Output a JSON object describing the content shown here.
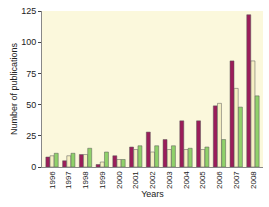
{
  "chart_data": {
    "type": "bar",
    "x_label": "Years",
    "y_label": "Number of publications",
    "categories": [
      "1996",
      "1997",
      "1998",
      "1999",
      "2000",
      "2001",
      "2002",
      "2003",
      "2004",
      "2005",
      "2006",
      "2007",
      "2008"
    ],
    "series": [
      {
        "color": "#9b1d5a",
        "values": [
          8,
          5,
          10,
          2,
          9,
          16,
          28,
          22,
          37,
          37,
          49,
          85,
          122
        ]
      },
      {
        "color": "#f6f0c4",
        "values": [
          9,
          9,
          10,
          4,
          6,
          14,
          12,
          14,
          14,
          14,
          51,
          63,
          85
        ]
      },
      {
        "color": "#8fd16a",
        "values": [
          11,
          11,
          15,
          12,
          6,
          17,
          17,
          17,
          15,
          16,
          22,
          48,
          57
        ]
      }
    ],
    "ylim": [
      0,
      125
    ],
    "yticks": [
      0,
      25,
      50,
      75,
      100,
      125
    ],
    "grid": false
  }
}
